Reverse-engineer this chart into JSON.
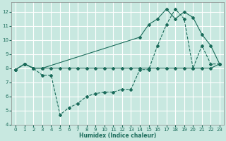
{
  "xlabel": "Humidex (Indice chaleur)",
  "bg_color": "#c8e8e0",
  "grid_color": "#ffffff",
  "line_color": "#1a6b5a",
  "xlim": [
    -0.5,
    23.5
  ],
  "ylim": [
    4,
    12.7
  ],
  "xticks": [
    0,
    1,
    2,
    3,
    4,
    5,
    6,
    7,
    8,
    9,
    10,
    11,
    12,
    13,
    14,
    15,
    16,
    17,
    18,
    19,
    20,
    21,
    22,
    23
  ],
  "yticks": [
    4,
    5,
    6,
    7,
    8,
    9,
    10,
    11,
    12
  ],
  "line1_x": [
    0,
    1,
    2,
    3,
    4,
    5,
    6,
    7,
    8,
    9,
    10,
    11,
    12,
    13,
    14,
    15,
    16,
    17,
    18,
    19,
    20,
    21,
    22,
    23
  ],
  "line1_y": [
    7.9,
    8.3,
    8.0,
    7.5,
    7.5,
    4.7,
    5.2,
    5.5,
    6.0,
    6.2,
    6.3,
    6.3,
    6.5,
    6.5,
    7.9,
    7.9,
    9.6,
    11.1,
    12.2,
    11.5,
    8.0,
    9.6,
    8.3,
    8.3
  ],
  "line2_x": [
    0,
    1,
    2,
    3,
    4,
    5,
    6,
    7,
    8,
    9,
    10,
    11,
    12,
    13,
    14,
    15,
    16,
    17,
    18,
    19,
    20,
    21,
    22,
    23
  ],
  "line2_y": [
    7.9,
    8.3,
    8.0,
    8.0,
    8.0,
    8.0,
    8.0,
    8.0,
    8.0,
    8.0,
    8.0,
    8.0,
    8.0,
    8.0,
    8.0,
    8.0,
    8.0,
    8.0,
    8.0,
    8.0,
    8.0,
    8.0,
    8.0,
    8.3
  ],
  "line3_x": [
    0,
    1,
    2,
    3,
    14,
    15,
    16,
    17,
    18,
    19,
    20,
    21,
    22,
    23
  ],
  "line3_y": [
    7.9,
    8.3,
    8.0,
    8.0,
    10.2,
    11.1,
    11.5,
    12.2,
    11.5,
    12.0,
    11.6,
    10.4,
    9.6,
    8.3
  ]
}
